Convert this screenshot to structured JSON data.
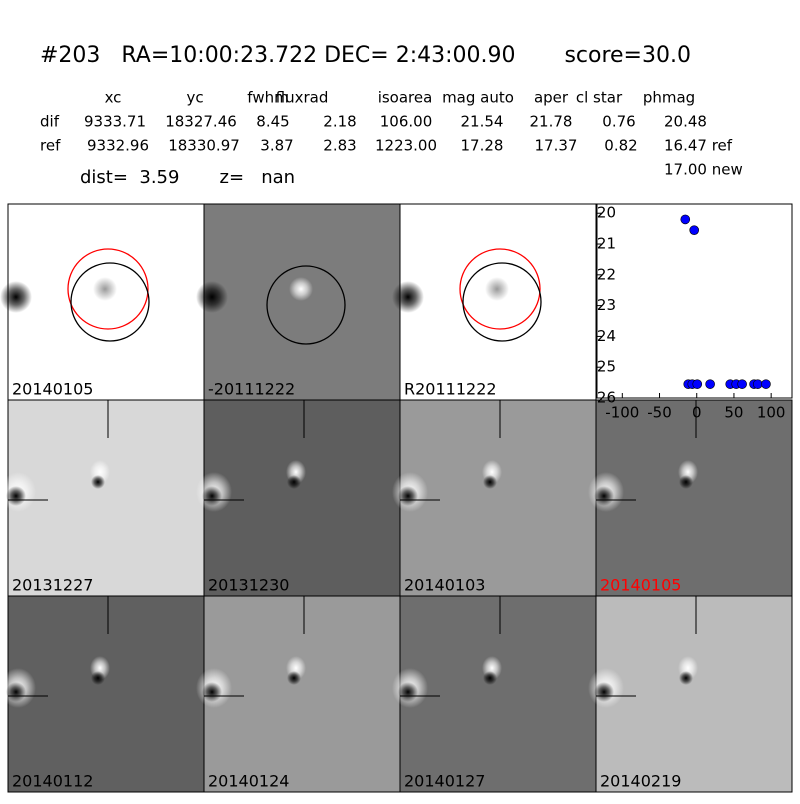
{
  "header": {
    "title": "#203   RA=10:00:23.722 DEC= 2:43:00.90       score=30.0",
    "columns": [
      "xc",
      "yc",
      "fwhm",
      "fluxrad",
      "isoarea",
      "mag auto",
      "aper",
      "cl star",
      "phmag"
    ],
    "rows": [
      [
        "dif",
        "9333.71",
        "18327.46",
        "8.45",
        "2.18",
        "106.00",
        "21.54",
        "21.78",
        "0.76",
        "20.48"
      ],
      [
        "ref",
        "9332.96",
        "18330.97",
        "3.87",
        "2.83",
        "1223.00",
        "17.28",
        "17.37",
        "0.82",
        "16.47 ref"
      ]
    ],
    "extra": "17.00 new",
    "dist": "dist=  3.59       z=   nan"
  },
  "panels": [
    {
      "label": "20140105"
    },
    {
      "label": "-20111222"
    },
    {
      "label": "R20111222"
    },
    {
      "label": "20131227"
    },
    {
      "label": "20131230"
    },
    {
      "label": "20140103"
    },
    {
      "label": "20140105"
    },
    {
      "label": "20140112"
    },
    {
      "label": "20140124"
    },
    {
      "label": "20140127"
    },
    {
      "label": "20140219"
    }
  ],
  "chart_data": {
    "type": "scatter",
    "color": "#0000ff",
    "x": [
      -15.4,
      -3.4,
      -11.4,
      -6,
      0.7,
      18,
      45,
      53,
      61,
      77,
      82,
      93
    ],
    "values": [
      20.2,
      20.55,
      25.55,
      25.55,
      25.55,
      25.55,
      25.55,
      25.55,
      25.55,
      25.55,
      25.55,
      25.55
    ],
    "xlim": [
      -134,
      128
    ],
    "xticks": [
      -100,
      -50,
      0,
      50,
      100
    ],
    "ylim": [
      19.7,
      26
    ],
    "yticks": [
      20,
      21,
      22,
      23,
      24,
      25,
      26
    ],
    "y_inverted": true
  }
}
